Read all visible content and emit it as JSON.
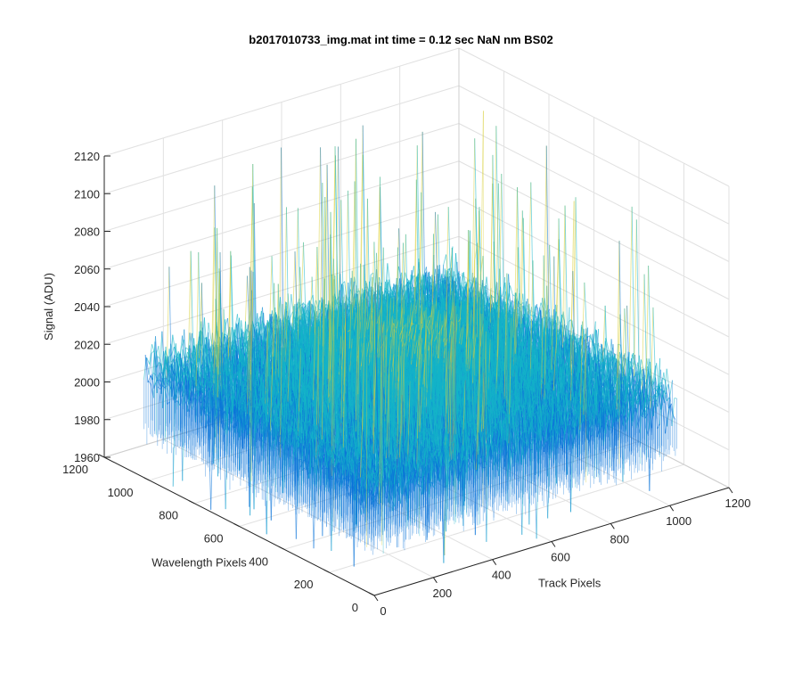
{
  "chart_data": {
    "type": "surface",
    "title": "b2017010733_img.mat int time = 0.12 sec  NaN nm BS02",
    "xlabel": "Track Pixels",
    "ylabel": "Wavelength Pixels",
    "zlabel": "Signal (ADU)",
    "xlim": [
      0,
      1200
    ],
    "ylim": [
      0,
      1200
    ],
    "zlim": [
      1960,
      2120
    ],
    "x_ticks": [
      "0",
      "200",
      "400",
      "600",
      "800",
      "1000",
      "1200"
    ],
    "y_ticks": [
      "0",
      "200",
      "400",
      "600",
      "800",
      "1000",
      "1200"
    ],
    "z_ticks": [
      "1960",
      "1980",
      "2000",
      "2020",
      "2040",
      "2060",
      "2080",
      "2100",
      "2120"
    ],
    "surface_extent": {
      "x": [
        0,
        1024
      ],
      "y": [
        0,
        1024
      ]
    },
    "signal_baseline": 2010,
    "signal_typical_range": [
      1985,
      2070
    ],
    "signal_max_approx": 2118,
    "signal_min_approx": 1947,
    "grid": true,
    "colormap": "parula",
    "colors": {
      "low": "#0a72d8",
      "mid": "#14b5c8",
      "high": "#d9cf3a"
    }
  }
}
